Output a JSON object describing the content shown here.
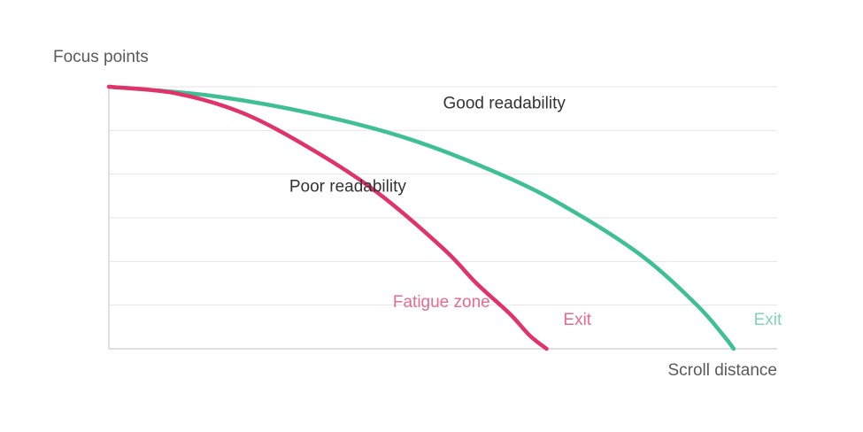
{
  "chart_data": {
    "type": "line",
    "ylabel": "Focus points",
    "xlabel": "Scroll distance",
    "xlim": [
      0,
      100
    ],
    "ylim": [
      0,
      6
    ],
    "grid": true,
    "legend": "none",
    "colors": {
      "poor": "#e0336b",
      "good": "#3fbf94",
      "axis": "#cccccc",
      "grid": "#e6e6e6",
      "text": "#333333",
      "muted": "#5a5a5a",
      "poor_muted": "#e46b92",
      "good_muted": "#7fd6b6"
    },
    "series": [
      {
        "key": "poor",
        "x": [
          0,
          10,
          20,
          30,
          40,
          50,
          55,
          60,
          63,
          65.5
        ],
        "y": [
          6,
          5.85,
          5.4,
          4.6,
          3.6,
          2.3,
          1.5,
          0.8,
          0.3,
          0
        ]
      },
      {
        "key": "good",
        "x": [
          0,
          15,
          30,
          45,
          60,
          70,
          80,
          88,
          92,
          93.5
        ],
        "y": [
          6,
          5.8,
          5.4,
          4.8,
          3.9,
          3.1,
          2.1,
          1.0,
          0.3,
          0
        ]
      }
    ],
    "annotations": [
      {
        "key": "poor_label",
        "text": "Poor readability",
        "x": 27,
        "y": 3.6,
        "color_key": "text"
      },
      {
        "key": "good_label",
        "text": "Good readability",
        "x": 50,
        "y": 5.5,
        "color_key": "text"
      },
      {
        "key": "fatigue",
        "text": "Fatigue zone",
        "x": 42.5,
        "y": 0.95,
        "color_key": "poor_muted"
      },
      {
        "key": "exit_poor",
        "text": "Exit",
        "x": 68,
        "y": 0.55,
        "color_key": "poor_muted"
      },
      {
        "key": "exit_good",
        "text": "Exit",
        "x": 96.5,
        "y": 0.55,
        "color_key": "good_muted"
      }
    ]
  }
}
